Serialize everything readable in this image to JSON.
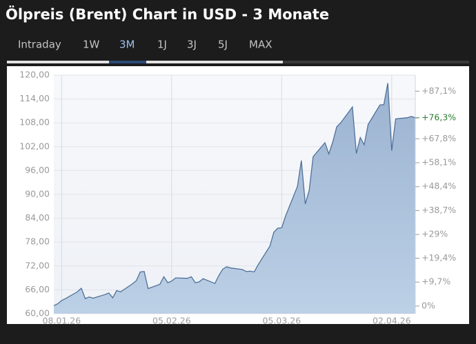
{
  "tabs": [
    "Intraday",
    "1W",
    "3M",
    "1J",
    "3J",
    "5J",
    "MAX"
  ],
  "active_tab": "3M",
  "chart_data": {
    "type": "area",
    "title": "Ölpreis (Brent) Chart in USD - 3 Monate",
    "x": [
      "06.01.26",
      "07.01.26",
      "08.01.26",
      "09.01.26",
      "12.01.26",
      "13.01.26",
      "14.01.26",
      "15.01.26",
      "16.01.26",
      "19.01.26",
      "20.01.26",
      "21.01.26",
      "22.01.26",
      "23.01.26",
      "26.01.26",
      "27.01.26",
      "28.01.26",
      "29.01.26",
      "30.01.26",
      "02.02.26",
      "03.02.26",
      "04.02.26",
      "05.02.26",
      "06.02.26",
      "09.02.26",
      "10.02.26",
      "11.02.26",
      "12.02.26",
      "13.02.26",
      "16.02.26",
      "17.02.26",
      "18.02.26",
      "19.02.26",
      "20.02.26",
      "23.02.26",
      "24.02.26",
      "25.02.26",
      "26.02.26",
      "27.02.26",
      "02.03.26",
      "03.03.26",
      "04.03.26",
      "05.03.26",
      "06.03.26",
      "09.03.26",
      "10.03.26",
      "11.03.26",
      "12.03.26",
      "13.03.26",
      "16.03.26",
      "17.03.26",
      "18.03.26",
      "19.03.26",
      "20.03.26",
      "23.03.26",
      "24.03.26",
      "25.03.26",
      "26.03.26",
      "27.03.26",
      "30.03.26",
      "31.03.26",
      "01.04.26",
      "02.04.26",
      "03.04.26",
      "06.04.26",
      "07.04.26",
      "08.04.26"
    ],
    "series": [
      {
        "color": "#4f7099",
        "values": [
          62.0,
          62.5,
          63.3,
          63.8,
          65.5,
          66.4,
          63.8,
          64.2,
          63.9,
          64.8,
          65.2,
          64.0,
          65.8,
          65.5,
          67.5,
          68.3,
          70.5,
          70.6,
          66.3,
          67.4,
          69.3,
          67.8,
          68.2,
          69.0,
          68.9,
          69.3,
          67.8,
          68.0,
          68.8,
          67.6,
          69.6,
          71.2,
          71.8,
          71.5,
          71.1,
          70.6,
          70.7,
          70.5,
          72.3,
          77.0,
          80.5,
          81.5,
          81.6,
          84.6,
          92.0,
          98.5,
          87.6,
          91.0,
          99.5,
          103.0,
          100.2,
          103.2,
          107.0,
          108.0,
          112.0,
          100.3,
          104.3,
          102.5,
          107.6,
          112.5,
          112.6,
          118.0,
          101.0,
          109.0,
          109.3,
          109.6,
          109.3
        ]
      }
    ],
    "xlim": [
      "06.01.26",
      "08.04.26"
    ],
    "xticks": [
      "08.01.26",
      "05.02.26",
      "05.03.26",
      "02.04.26"
    ],
    "ylim": [
      60,
      120
    ],
    "yticks": [
      {
        "value": 60,
        "label": "60,00"
      },
      {
        "value": 66,
        "label": "66,00"
      },
      {
        "value": 72,
        "label": "72,00"
      },
      {
        "value": 78,
        "label": "78,00"
      },
      {
        "value": 84,
        "label": "84,00"
      },
      {
        "value": 90,
        "label": "90,00"
      },
      {
        "value": 96,
        "label": "96,00"
      },
      {
        "value": 102,
        "label": "102,00"
      },
      {
        "value": 108,
        "label": "108,00"
      },
      {
        "value": 114,
        "label": "114,00"
      },
      {
        "value": 120,
        "label": "120,00"
      }
    ],
    "y2lim": [
      -3.1,
      93.6
    ],
    "y2ticks": [
      {
        "value": 0,
        "label": "0%"
      },
      {
        "value": 9.7,
        "label": "+9,7%"
      },
      {
        "value": 19.4,
        "label": "+19,4%"
      },
      {
        "value": 29,
        "label": "+29%"
      },
      {
        "value": 38.7,
        "label": "+38,7%"
      },
      {
        "value": 48.4,
        "label": "+48,4%"
      },
      {
        "value": 58.1,
        "label": "+58,1%"
      },
      {
        "value": 67.8,
        "label": "+67,8%"
      },
      {
        "value": 87.1,
        "label": "+87,1%"
      }
    ],
    "current": {
      "value": 76.3,
      "label": "+76,3%",
      "color": "#2e7d32"
    },
    "grid": true
  }
}
